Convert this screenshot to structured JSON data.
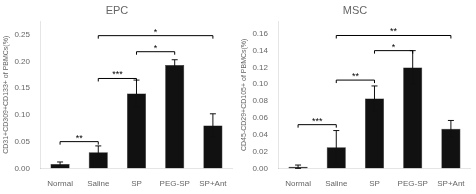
{
  "chart_data": [
    {
      "type": "bar",
      "title": "EPC",
      "categories": [
        "Normal",
        "Saline",
        "SP",
        "PEG-SP",
        "SP+Ant"
      ],
      "values": [
        0.008,
        0.03,
        0.14,
        0.193,
        0.08
      ],
      "errors": [
        0.004,
        0.012,
        0.025,
        0.01,
        0.022
      ],
      "ylabel": "CD31+CD309+CD133+ of PBMCs(%)",
      "ylim": [
        0,
        0.275
      ],
      "yticks": [
        {
          "value": 0,
          "label": "0.00"
        },
        {
          "value": 0.05,
          "label": "0.05"
        },
        {
          "value": 0.1,
          "label": "0.10"
        },
        {
          "value": 0.15,
          "label": "0.15"
        },
        {
          "value": 0.2,
          "label": "0.20"
        },
        {
          "value": 0.25,
          "label": "0.25"
        }
      ],
      "color": "#111111",
      "grid": false,
      "annotations": [
        {
          "from": "Normal",
          "to": "Saline",
          "y": 0.05,
          "label": "**"
        },
        {
          "from": "Saline",
          "to": "SP",
          "y": 0.168,
          "label": "***"
        },
        {
          "from": "SP",
          "to": "PEG-SP",
          "y": 0.218,
          "label": "*"
        },
        {
          "from": "Saline",
          "to": "SP+Ant",
          "y": 0.248,
          "label": "*"
        }
      ]
    },
    {
      "type": "bar",
      "title": "MSC",
      "categories": [
        "Normal",
        "Saline",
        "SP",
        "PEG-SP",
        "SP+Ant"
      ],
      "values": [
        0.002,
        0.025,
        0.083,
        0.12,
        0.047
      ],
      "errors": [
        0.002,
        0.02,
        0.015,
        0.02,
        0.01
      ],
      "ylabel": "CD45-CD29+CD105+ of PBMCs(%)",
      "ylim": [
        0,
        0.175
      ],
      "yticks": [
        {
          "value": 0,
          "label": "0.00"
        },
        {
          "value": 0.02,
          "label": "0.02"
        },
        {
          "value": 0.04,
          "label": "0.04"
        },
        {
          "value": 0.06,
          "label": "0.06"
        },
        {
          "value": 0.08,
          "label": "0.08"
        },
        {
          "value": 0.1,
          "label": "0.10"
        },
        {
          "value": 0.12,
          "label": "0.12"
        },
        {
          "value": 0.14,
          "label": "0.14"
        },
        {
          "value": 0.16,
          "label": "0.16"
        }
      ],
      "color": "#111111",
      "grid": false,
      "annotations": [
        {
          "from": "Normal",
          "to": "Saline",
          "y": 0.052,
          "label": "***"
        },
        {
          "from": "Saline",
          "to": "SP",
          "y": 0.105,
          "label": "**"
        },
        {
          "from": "SP",
          "to": "PEG-SP",
          "y": 0.14,
          "label": "*"
        },
        {
          "from": "Saline",
          "to": "SP+Ant",
          "y": 0.158,
          "label": "**"
        }
      ]
    }
  ]
}
